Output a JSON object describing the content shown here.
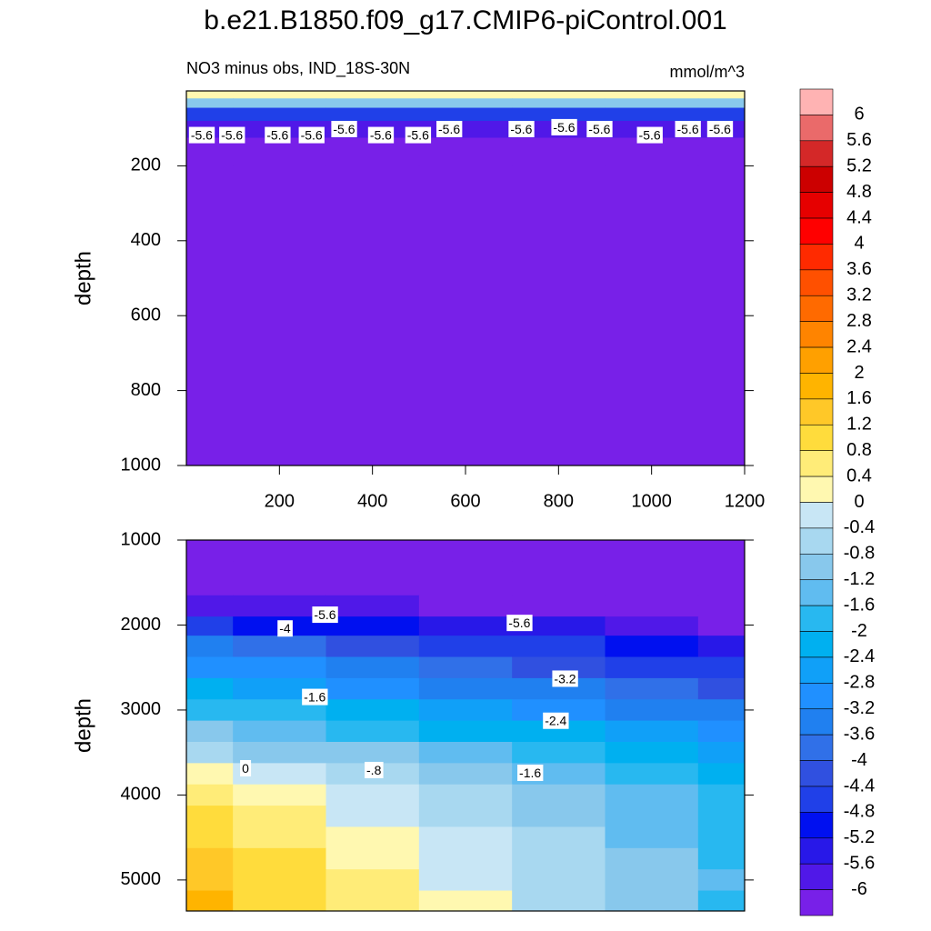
{
  "title": "b.e21.B1850.f09_g17.CMIP6-piControl.001",
  "colorbar": {
    "levels": [
      6,
      5.6,
      5.2,
      4.8,
      4.4,
      4,
      3.6,
      3.2,
      2.8,
      2.4,
      2,
      1.6,
      1.2,
      0.8,
      0.4,
      0,
      -0.4,
      -0.8,
      -1.2,
      -1.6,
      -2,
      -2.4,
      -2.8,
      -3.2,
      -3.6,
      -4,
      -4.4,
      -4.8,
      -5.2,
      -5.6,
      -6
    ],
    "colors": [
      "#ffb3b3",
      "#ea6a6a",
      "#d42828",
      "#cc0000",
      "#e60000",
      "#ff0000",
      "#ff2a00",
      "#ff5000",
      "#ff6a00",
      "#ff8400",
      "#ffa000",
      "#ffb400",
      "#ffc828",
      "#ffdc3c",
      "#ffec78",
      "#fff8b0",
      "#c8e6f5",
      "#a8d8f0",
      "#88c8ec",
      "#60bcf0",
      "#28b8f0",
      "#00b0f0",
      "#10a0f8",
      "#2090ff",
      "#2080f0",
      "#3070e8",
      "#3050e0",
      "#2040e8",
      "#0010f0",
      "#2818e8",
      "#5018e8",
      "#7820e8"
    ]
  },
  "chart_data": [
    {
      "type": "contour",
      "left_string": "NO3 minus obs, IND_18S-30N",
      "right_string": "mmol/m^3",
      "y_label": "depth",
      "x": [
        0,
        200,
        400,
        600,
        800,
        1000,
        1200
      ],
      "y": [
        10,
        30,
        60,
        100,
        150,
        250,
        500,
        1000
      ],
      "values": [
        [
          0.2,
          0.2,
          0.2,
          0.2,
          0.2,
          0.2,
          0.2
        ],
        [
          -1.2,
          -1.2,
          -1.2,
          -1.2,
          -1.2,
          -1.2,
          -1.2
        ],
        [
          -4.5,
          -4.5,
          -4.5,
          -4.5,
          -4.5,
          -4.5,
          -4.5
        ],
        [
          -5.8,
          -5.8,
          -5.8,
          -5.8,
          -5.8,
          -5.8,
          -5.8
        ],
        [
          -6.1,
          -6.1,
          -6.1,
          -6.1,
          -6.1,
          -6.1,
          -6.1
        ],
        [
          -6.3,
          -6.3,
          -6.3,
          -6.3,
          -6.3,
          -6.3,
          -6.3
        ],
        [
          -6.3,
          -6.3,
          -6.3,
          -6.3,
          -6.3,
          -6.3,
          -6.3
        ],
        [
          -6.3,
          -6.3,
          -6.3,
          -6.3,
          -6.3,
          -6.3,
          -6.3
        ]
      ],
      "xlim": [
        0,
        1200
      ],
      "ylim": [
        0,
        1000
      ],
      "y_reversed": true,
      "xticks": [
        200,
        400,
        600,
        800,
        1000,
        1200
      ],
      "yticks": [
        200,
        400,
        600,
        800,
        1000
      ],
      "contour_labels": [
        {
          "x": 33,
          "y": 121,
          "value": -5.6
        },
        {
          "x": 98,
          "y": 121,
          "value": -5.6
        },
        {
          "x": 196,
          "y": 121,
          "value": -5.6
        },
        {
          "x": 269,
          "y": 121,
          "value": -5.6
        },
        {
          "x": 339,
          "y": 105,
          "value": -5.6
        },
        {
          "x": 418,
          "y": 121,
          "value": -5.6
        },
        {
          "x": 498,
          "y": 121,
          "value": -5.6
        },
        {
          "x": 565,
          "y": 105,
          "value": -5.6
        },
        {
          "x": 720,
          "y": 105,
          "value": -5.6
        },
        {
          "x": 812,
          "y": 100,
          "value": -5.6
        },
        {
          "x": 888,
          "y": 105,
          "value": -5.6
        },
        {
          "x": 996,
          "y": 121,
          "value": -5.6
        },
        {
          "x": 1078,
          "y": 105,
          "value": -5.6
        },
        {
          "x": 1147,
          "y": 105,
          "value": -5.6
        }
      ]
    },
    {
      "type": "contour",
      "y_label": "depth",
      "x": [
        0,
        200,
        400,
        600,
        800,
        1000,
        1200
      ],
      "y": [
        1000,
        1500,
        1800,
        2000,
        2250,
        2500,
        2750,
        3000,
        3250,
        3500,
        3750,
        4000,
        4250,
        4500,
        4750,
        5000,
        5250
      ],
      "values": [
        [
          -6.3,
          -6.3,
          -6.3,
          -6.3,
          -6.3,
          -6.3,
          -6.3
        ],
        [
          -6.3,
          -6.3,
          -6.3,
          -6.3,
          -6.3,
          -6.3,
          -6.3
        ],
        [
          -5.8,
          -5.9,
          -6.0,
          -6.1,
          -6.1,
          -6.2,
          -6.3
        ],
        [
          -4.6,
          -4.9,
          -5.1,
          -5.4,
          -5.6,
          -5.9,
          -6.1
        ],
        [
          -3.6,
          -3.9,
          -4.2,
          -4.5,
          -4.8,
          -5.1,
          -5.4
        ],
        [
          -2.9,
          -3.2,
          -3.5,
          -3.9,
          -4.2,
          -4.5,
          -4.8
        ],
        [
          -2.3,
          -2.6,
          -2.9,
          -3.3,
          -3.6,
          -3.9,
          -4.2
        ],
        [
          -1.7,
          -2.0,
          -2.3,
          -2.7,
          -3.0,
          -3.3,
          -3.6
        ],
        [
          -1.1,
          -1.4,
          -1.8,
          -2.1,
          -2.4,
          -2.8,
          -3.1
        ],
        [
          -0.5,
          -0.9,
          -1.2,
          -1.6,
          -2.0,
          -2.3,
          -2.7
        ],
        [
          0.1,
          -0.3,
          -0.7,
          -1.1,
          -1.5,
          -1.9,
          -2.3
        ],
        [
          0.5,
          0.1,
          -0.3,
          -0.8,
          -1.2,
          -1.6,
          -2.0
        ],
        [
          0.8,
          0.4,
          -0.1,
          -0.6,
          -1.0,
          -1.5,
          -1.9
        ],
        [
          1.1,
          0.6,
          0.1,
          -0.4,
          -0.8,
          -1.3,
          -1.8
        ],
        [
          1.3,
          0.8,
          0.3,
          -0.2,
          -0.7,
          -1.2,
          -1.7
        ],
        [
          1.5,
          1.0,
          0.5,
          -0.1,
          -0.6,
          -1.1,
          -1.6
        ],
        [
          1.7,
          1.1,
          0.6,
          0.0,
          -0.6,
          -1.1,
          -1.7
        ]
      ],
      "xlim": [
        0,
        1200
      ],
      "ylim": [
        1000,
        5365
      ],
      "y_reversed": true,
      "yticks": [
        1000,
        2000,
        3000,
        4000,
        5000
      ],
      "contour_labels": [
        {
          "x": 298,
          "y": 1892,
          "value": -5.6
        },
        {
          "x": 212,
          "y": 2054,
          "value": -4
        },
        {
          "x": 716,
          "y": 1989,
          "value": -5.6
        },
        {
          "x": 814,
          "y": 2645,
          "value": -3.2
        },
        {
          "x": 276,
          "y": 2860,
          "value": -1.6
        },
        {
          "x": 794,
          "y": 3140,
          "value": -2.4
        },
        {
          "x": 127,
          "y": 3699,
          "value": 0
        },
        {
          "x": 403,
          "y": 3720,
          "value": -0.8,
          "label": "-.8"
        },
        {
          "x": 739,
          "y": 3753,
          "value": -1.6
        }
      ]
    }
  ]
}
